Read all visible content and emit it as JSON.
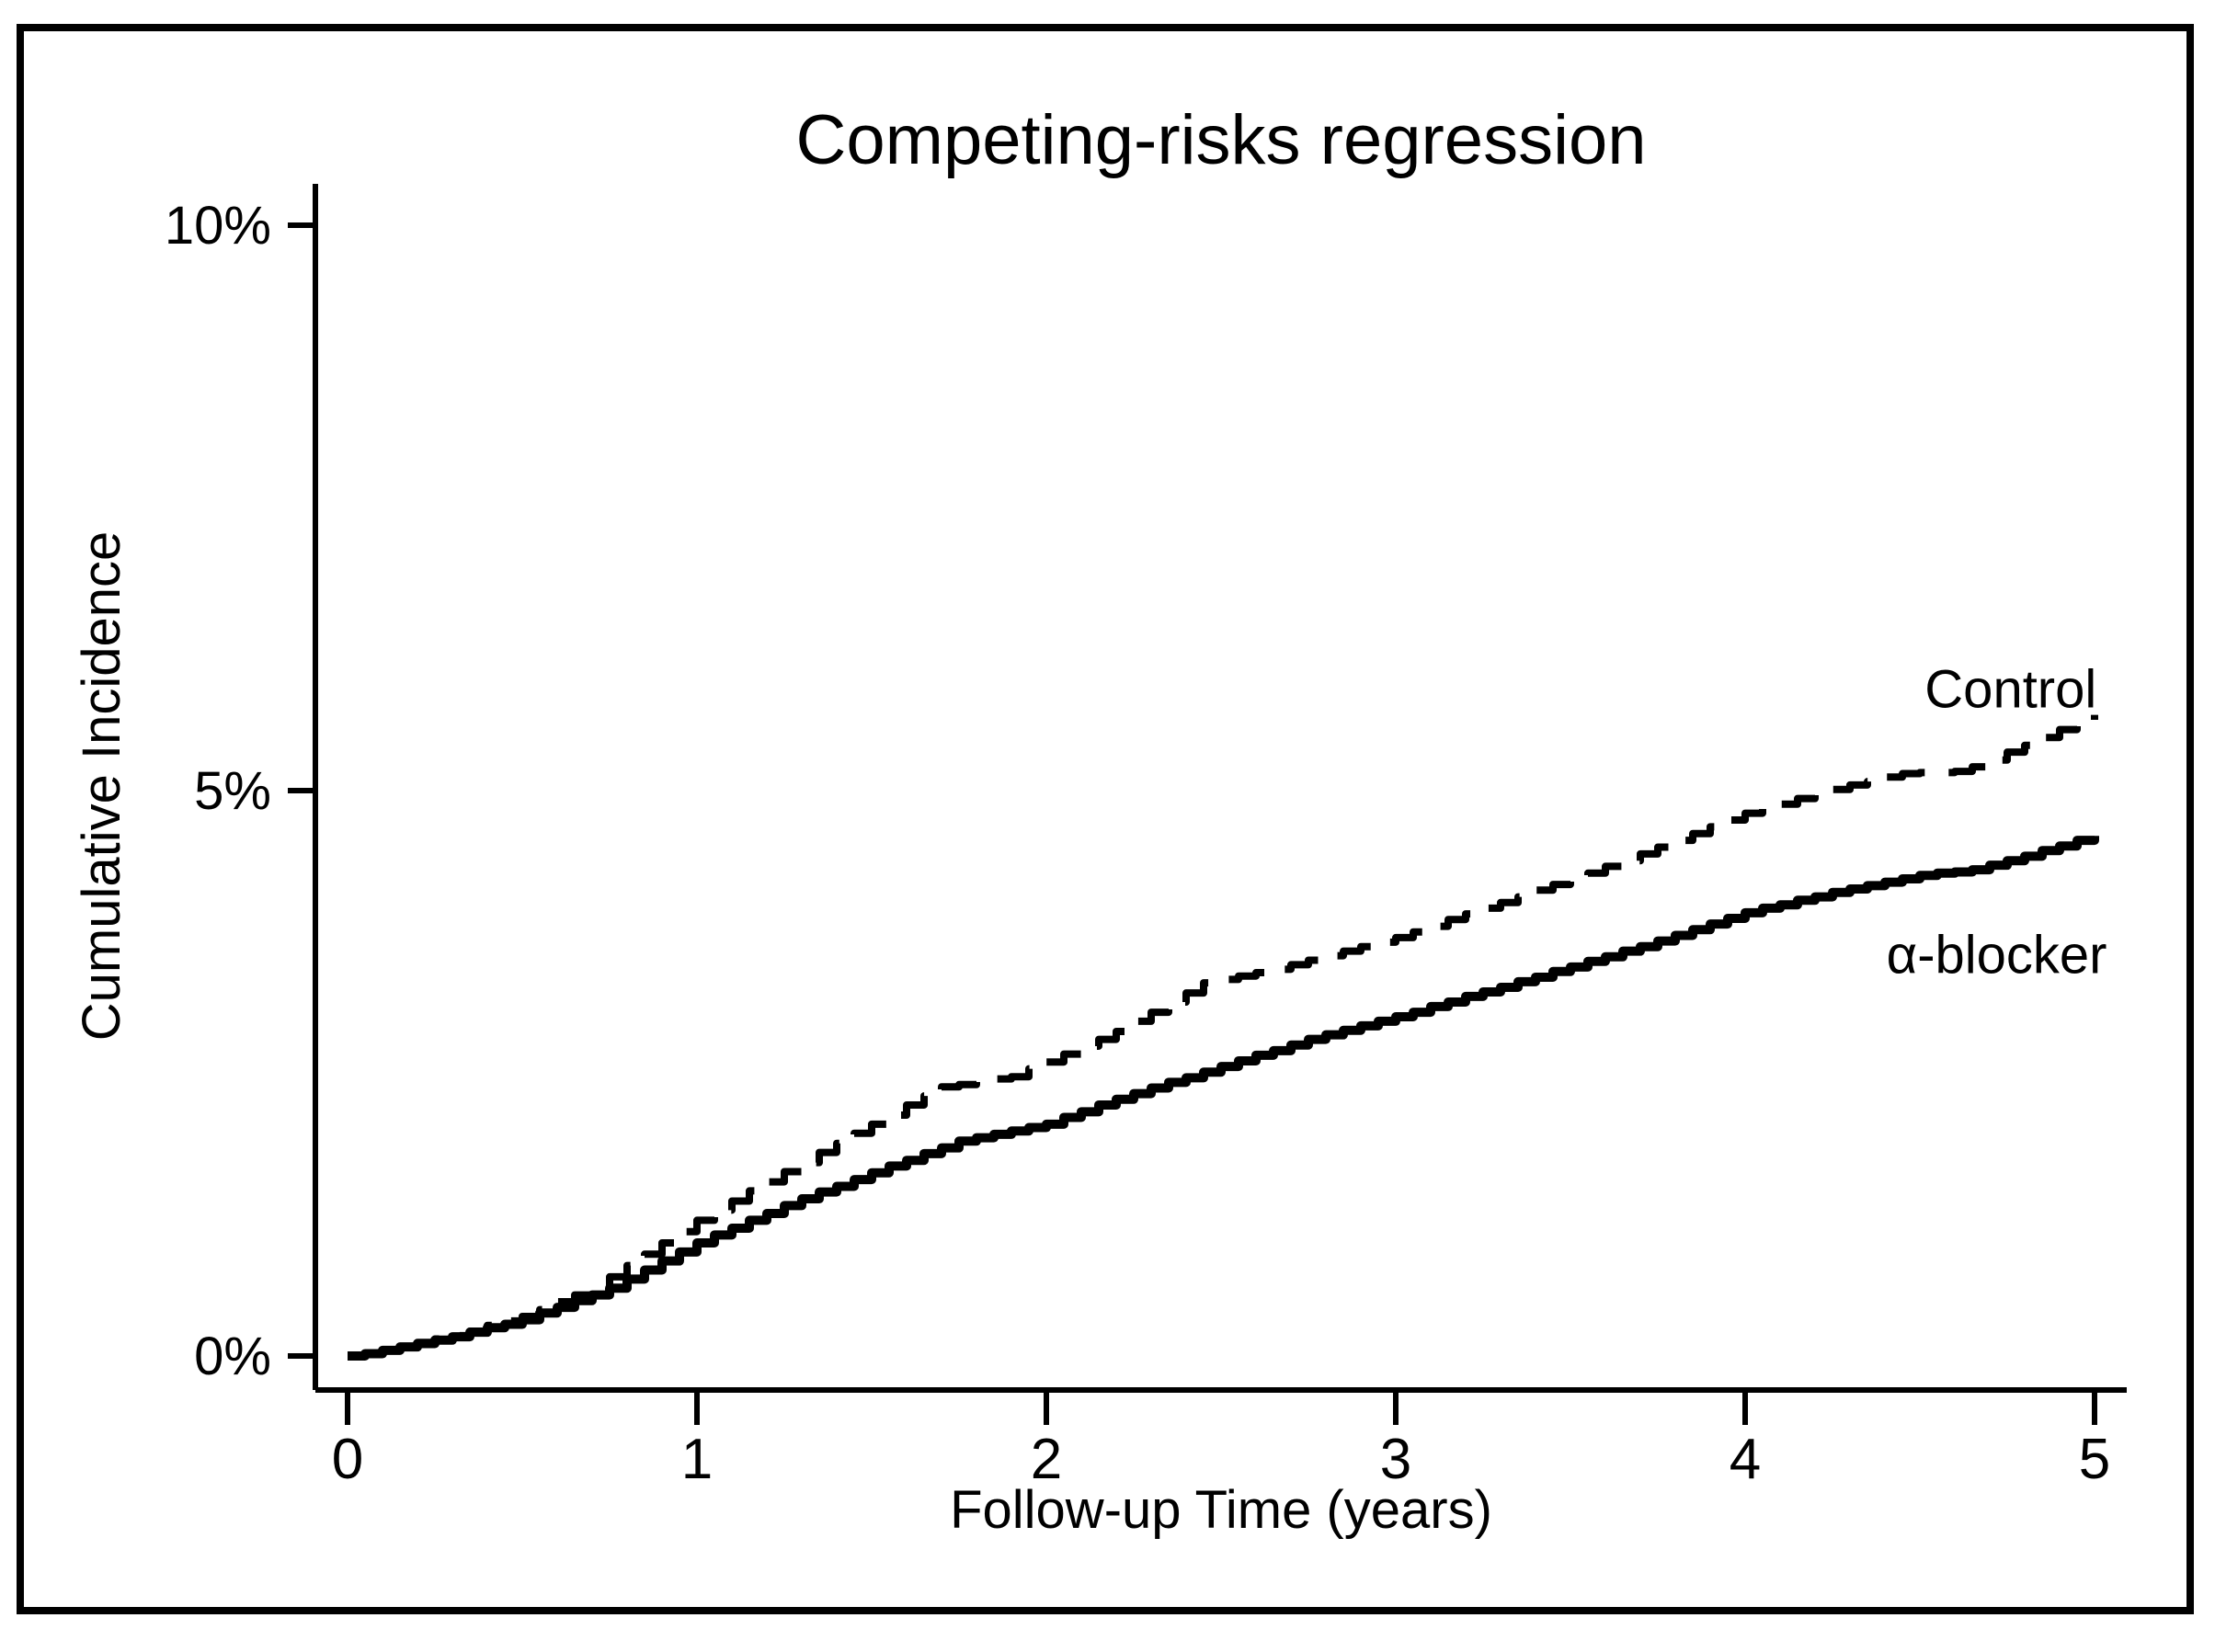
{
  "figure": {
    "background_color": "#ffffff",
    "frame_color": "#000000",
    "line_color": "#000000"
  },
  "chart_data": {
    "type": "line",
    "subtype": "cumulative-incidence-step-curves",
    "title": "Competing-risks regression",
    "xlabel": "Follow-up Time (years)",
    "ylabel": "Cumulative Incidence",
    "x_range_years": [
      0,
      5
    ],
    "y_range_percent": [
      0,
      10
    ],
    "x_tick_values": [
      0,
      1,
      2,
      3,
      4,
      5
    ],
    "x_tick_labels": [
      "0",
      "1",
      "2",
      "3",
      "4",
      "5"
    ],
    "y_tick_values_percent": [
      0,
      5,
      10
    ],
    "y_tick_labels": [
      "0%",
      "5%",
      "10%"
    ],
    "grid": false,
    "legend_position": "direct-curve-labels",
    "step_interpolation": true,
    "x_step_years": 0.05,
    "series": [
      {
        "name": "Control",
        "line_style": "dashed",
        "color": "#000000",
        "label_at": {
          "year": 4.76,
          "percent": 5.9
        },
        "values_percent": [
          0,
          0.02,
          0.05,
          0.08,
          0.12,
          0.15,
          0.18,
          0.22,
          0.27,
          0.31,
          0.35,
          0.41,
          0.48,
          0.54,
          0.6,
          0.7,
          0.8,
          0.9,
          1,
          1.1,
          1.2,
          1.29,
          1.37,
          1.46,
          1.54,
          1.63,
          1.71,
          1.8,
          1.88,
          1.97,
          2.05,
          2.13,
          2.22,
          2.3,
          2.38,
          2.4,
          2.43,
          2.45,
          2.47,
          2.54,
          2.6,
          2.67,
          2.74,
          2.8,
          2.87,
          2.96,
          3.04,
          3.13,
          3.21,
          3.3,
          3.33,
          3.36,
          3.39,
          3.42,
          3.46,
          3.5,
          3.54,
          3.58,
          3.62,
          3.66,
          3.7,
          3.75,
          3.8,
          3.86,
          3.91,
          3.96,
          4.01,
          4.06,
          4.12,
          4.17,
          4.22,
          4.27,
          4.33,
          4.38,
          4.44,
          4.5,
          4.56,
          4.62,
          4.68,
          4.74,
          4.8,
          4.84,
          4.88,
          4.93,
          4.97,
          5.01,
          5.05,
          5.08,
          5.12,
          5.15,
          5.16,
          5.16,
          5.17,
          5.21,
          5.27,
          5.34,
          5.4,
          5.47,
          5.54,
          5.6,
          5.67
        ]
      },
      {
        "name": "α-blocker",
        "line_style": "solid",
        "color": "#000000",
        "label_at": {
          "year": 4.72,
          "percent": 3.55
        },
        "values_percent": [
          0,
          0.02,
          0.05,
          0.08,
          0.11,
          0.14,
          0.17,
          0.21,
          0.25,
          0.28,
          0.32,
          0.38,
          0.43,
          0.49,
          0.54,
          0.6,
          0.68,
          0.76,
          0.84,
          0.92,
          1,
          1.07,
          1.13,
          1.2,
          1.26,
          1.33,
          1.39,
          1.45,
          1.5,
          1.56,
          1.62,
          1.68,
          1.73,
          1.79,
          1.84,
          1.9,
          1.93,
          1.96,
          1.99,
          2.02,
          2.05,
          2.11,
          2.16,
          2.22,
          2.27,
          2.32,
          2.37,
          2.42,
          2.46,
          2.51,
          2.56,
          2.61,
          2.66,
          2.7,
          2.75,
          2.8,
          2.84,
          2.88,
          2.92,
          2.96,
          3,
          3.04,
          3.09,
          3.13,
          3.18,
          3.22,
          3.26,
          3.31,
          3.35,
          3.4,
          3.44,
          3.49,
          3.53,
          3.58,
          3.62,
          3.67,
          3.72,
          3.77,
          3.82,
          3.87,
          3.92,
          3.96,
          3.99,
          4.03,
          4.06,
          4.1,
          4.13,
          4.16,
          4.19,
          4.22,
          4.25,
          4.27,
          4.28,
          4.3,
          4.34,
          4.38,
          4.42,
          4.47,
          4.51,
          4.56,
          4.6
        ]
      }
    ]
  }
}
